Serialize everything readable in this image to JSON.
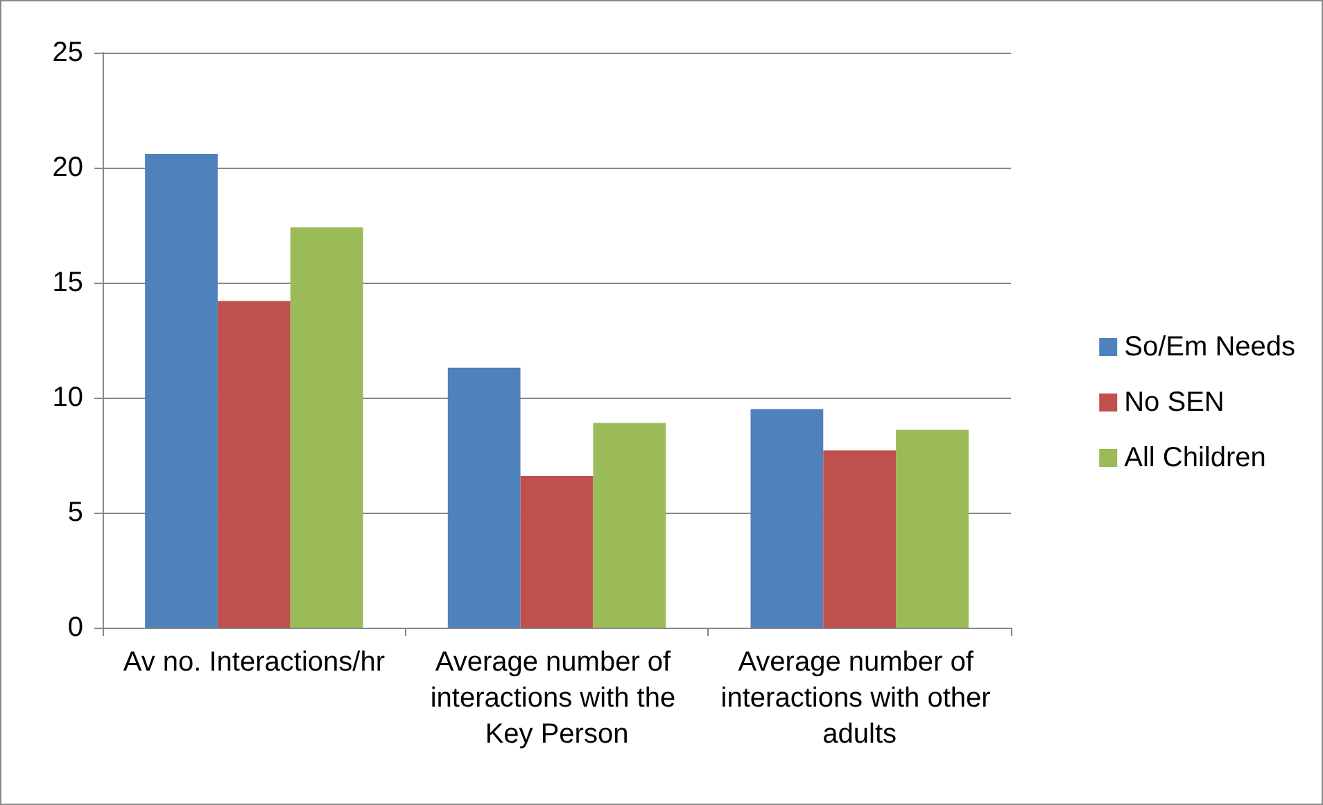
{
  "chart_data": {
    "type": "bar",
    "categories": [
      "Av no. Interactions/hr",
      "Average number of interactions with the Key Person",
      "Average number of interactions with other adults"
    ],
    "series": [
      {
        "name": "So/Em Needs",
        "color": "#4f81bd",
        "values": [
          20.6,
          11.3,
          9.5
        ]
      },
      {
        "name": "No SEN",
        "color": "#c0504d",
        "values": [
          14.2,
          6.6,
          7.7
        ]
      },
      {
        "name": "All Children",
        "color": "#9bbb59",
        "values": [
          17.4,
          8.9,
          8.6
        ]
      }
    ],
    "ylim": [
      0,
      25
    ],
    "yticks": [
      0,
      5,
      10,
      15,
      20,
      25
    ],
    "grid": "y",
    "legend": "right"
  }
}
